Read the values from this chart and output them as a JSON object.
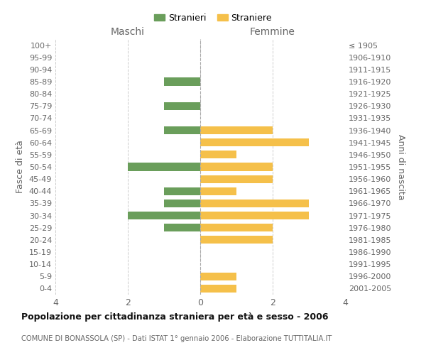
{
  "age_groups": [
    "0-4",
    "5-9",
    "10-14",
    "15-19",
    "20-24",
    "25-29",
    "30-34",
    "35-39",
    "40-44",
    "45-49",
    "50-54",
    "55-59",
    "60-64",
    "65-69",
    "70-74",
    "75-79",
    "80-84",
    "85-89",
    "90-94",
    "95-99",
    "100+"
  ],
  "birth_years": [
    "2001-2005",
    "1996-2000",
    "1991-1995",
    "1986-1990",
    "1981-1985",
    "1976-1980",
    "1971-1975",
    "1966-1970",
    "1961-1965",
    "1956-1960",
    "1951-1955",
    "1946-1950",
    "1941-1945",
    "1936-1940",
    "1931-1935",
    "1926-1930",
    "1921-1925",
    "1916-1920",
    "1911-1915",
    "1906-1910",
    "≤ 1905"
  ],
  "males": [
    0,
    0,
    0,
    0,
    0,
    1,
    2,
    1,
    1,
    0,
    2,
    0,
    0,
    1,
    0,
    1,
    0,
    1,
    0,
    0,
    0
  ],
  "females": [
    1,
    1,
    0,
    0,
    2,
    2,
    3,
    3,
    1,
    2,
    2,
    1,
    3,
    2,
    0,
    0,
    0,
    0,
    0,
    0,
    0
  ],
  "male_color": "#6a9e5b",
  "female_color": "#f5c04a",
  "title": "Popolazione per cittadinanza straniera per età e sesso - 2006",
  "subtitle": "COMUNE DI BONASSOLA (SP) - Dati ISTAT 1° gennaio 2006 - Elaborazione TUTTITALIA.IT",
  "header_left": "Maschi",
  "header_right": "Femmine",
  "ylabel_left": "Fasce di età",
  "ylabel_right": "Anni di nascita",
  "legend_male": "Stranieri",
  "legend_female": "Straniere",
  "xlim": 4,
  "background_color": "#ffffff",
  "grid_color": "#cccccc",
  "bar_height": 0.65
}
